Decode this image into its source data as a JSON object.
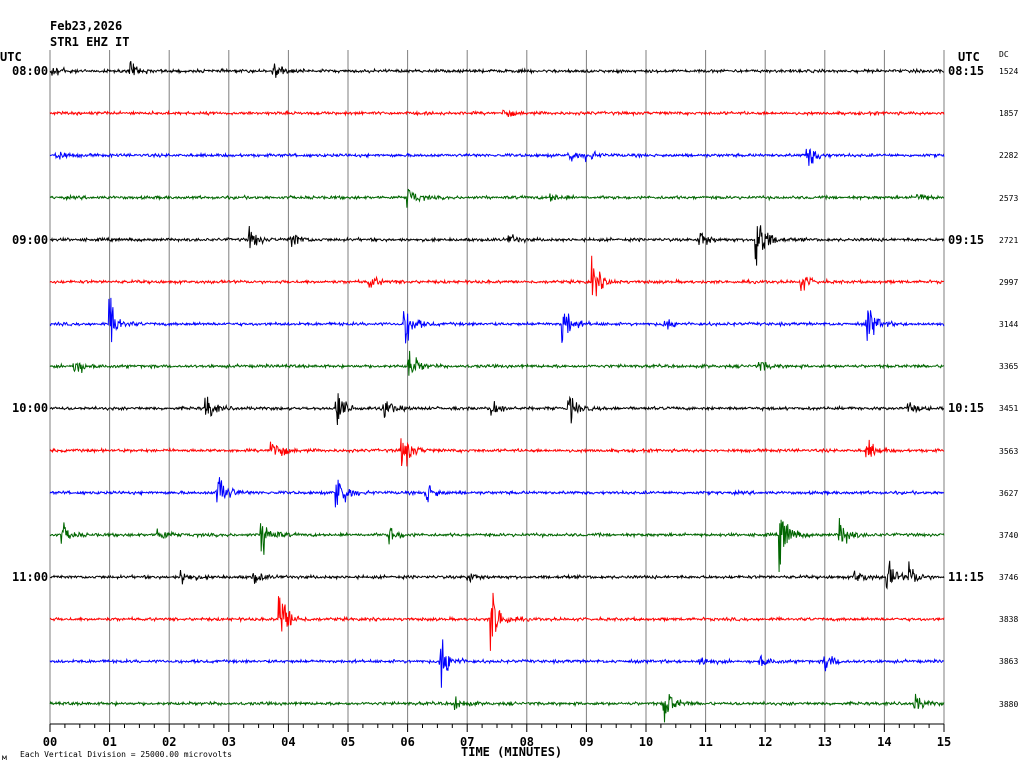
{
  "header": {
    "date": "Feb23,2026",
    "station": "STR1 EHZ IT",
    "utc_left": "UTC",
    "utc_right": "UTC",
    "dc_label": "DC"
  },
  "footer": {
    "scale_note": "Each Vertical Division = 25000.00 microvolts",
    "corner_mark": "м"
  },
  "colors": {
    "cycle": [
      "#000000",
      "#ff0000",
      "#0000ff",
      "#006600"
    ],
    "grid": "#7f7f7f",
    "background": "#ffffff"
  },
  "chart_data": {
    "type": "line",
    "title": "STR1 EHZ IT",
    "xlabel": "TIME (MINUTES)",
    "x_ticks": [
      "00",
      "01",
      "02",
      "03",
      "04",
      "05",
      "06",
      "07",
      "08",
      "09",
      "10",
      "11",
      "12",
      "13",
      "14",
      "15"
    ],
    "xlim": [
      0,
      15
    ],
    "grid": "vertical lines each minute",
    "trace_interval_minutes": 15,
    "left_time_labels": [
      "08:00",
      "09:00",
      "10:00",
      "11:00"
    ],
    "right_time_labels": [
      "08:15",
      "09:15",
      "10:15",
      "11:15"
    ],
    "traces": [
      {
        "start": "08:00",
        "dc": "1524",
        "events": [
          [
            0.05,
            0.5
          ],
          [
            1.35,
            0.4
          ],
          [
            3.75,
            0.5
          ]
        ]
      },
      {
        "start": "08:15",
        "dc": "1857",
        "events": [
          [
            7.6,
            0.25
          ]
        ]
      },
      {
        "start": "08:30",
        "dc": "2282",
        "events": [
          [
            0.1,
            0.3
          ],
          [
            8.7,
            0.4
          ],
          [
            9.0,
            0.3
          ],
          [
            12.7,
            0.8
          ]
        ]
      },
      {
        "start": "08:45",
        "dc": "2573",
        "events": [
          [
            6.0,
            0.6
          ],
          [
            8.4,
            0.25
          ],
          [
            14.55,
            0.3
          ]
        ]
      },
      {
        "start": "09:00",
        "dc": "2721",
        "events": [
          [
            3.35,
            0.6
          ],
          [
            4.05,
            0.5
          ],
          [
            7.7,
            0.3
          ],
          [
            10.9,
            0.6
          ],
          [
            11.85,
            2.0
          ]
        ]
      },
      {
        "start": "09:15",
        "dc": "2997",
        "events": [
          [
            5.35,
            0.4
          ],
          [
            9.1,
            1.0
          ],
          [
            12.6,
            0.5
          ]
        ]
      },
      {
        "start": "09:30",
        "dc": "3144",
        "events": [
          [
            1.0,
            1.2
          ],
          [
            5.95,
            1.2
          ],
          [
            8.6,
            1.2
          ],
          [
            10.3,
            0.4
          ],
          [
            13.7,
            1.2
          ]
        ]
      },
      {
        "start": "09:45",
        "dc": "3365",
        "events": [
          [
            0.4,
            0.6
          ],
          [
            6.0,
            1.0
          ],
          [
            11.9,
            0.3
          ]
        ]
      },
      {
        "start": "10:00",
        "dc": "3451",
        "events": [
          [
            2.6,
            0.8
          ],
          [
            4.8,
            1.0
          ],
          [
            5.6,
            0.6
          ],
          [
            7.4,
            0.5
          ],
          [
            8.7,
            0.8
          ],
          [
            14.4,
            0.3
          ]
        ]
      },
      {
        "start": "10:15",
        "dc": "3563",
        "events": [
          [
            3.7,
            1.0
          ],
          [
            5.9,
            1.2
          ],
          [
            13.7,
            0.6
          ]
        ]
      },
      {
        "start": "10:30",
        "dc": "3627",
        "events": [
          [
            2.8,
            1.6
          ],
          [
            4.8,
            1.6
          ],
          [
            6.3,
            0.7
          ]
        ]
      },
      {
        "start": "10:45",
        "dc": "3740",
        "events": [
          [
            0.2,
            0.6
          ],
          [
            1.8,
            0.5
          ],
          [
            3.55,
            1.2
          ],
          [
            5.7,
            0.5
          ],
          [
            12.25,
            1.6
          ],
          [
            13.25,
            0.9
          ]
        ]
      },
      {
        "start": "11:00",
        "dc": "3746",
        "events": [
          [
            2.2,
            0.5
          ],
          [
            3.4,
            0.4
          ],
          [
            7.0,
            0.3
          ],
          [
            13.5,
            0.5
          ],
          [
            14.05,
            0.9
          ],
          [
            14.4,
            0.7
          ]
        ]
      },
      {
        "start": "11:15",
        "dc": "3838",
        "events": [
          [
            3.85,
            1.8
          ],
          [
            7.4,
            1.8
          ]
        ]
      },
      {
        "start": "11:30",
        "dc": "3863",
        "events": [
          [
            6.55,
            1.6
          ],
          [
            10.9,
            0.3
          ],
          [
            11.9,
            0.4
          ],
          [
            13.0,
            0.6
          ]
        ]
      },
      {
        "start": "11:45",
        "dc": "3880",
        "events": [
          [
            6.8,
            0.4
          ],
          [
            10.3,
            1.2
          ],
          [
            14.5,
            0.5
          ]
        ]
      }
    ]
  }
}
